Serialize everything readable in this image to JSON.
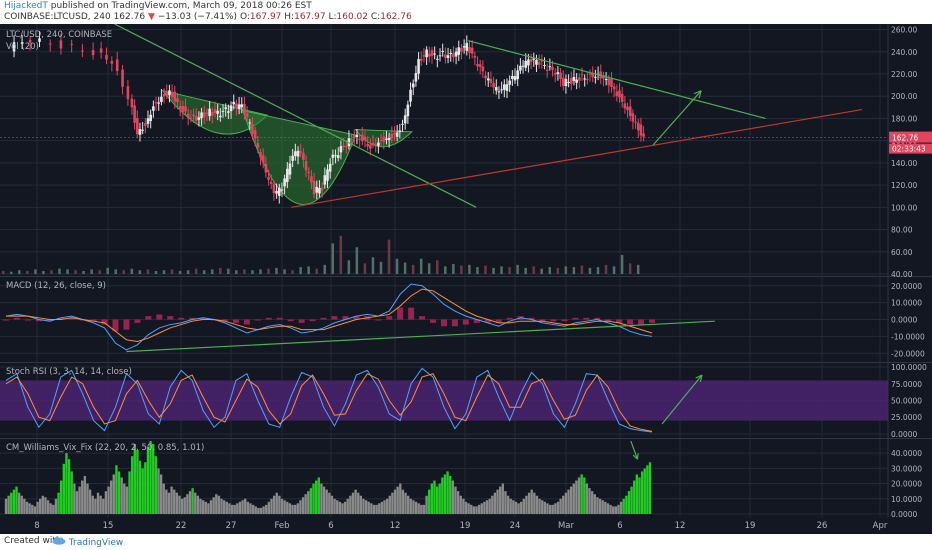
{
  "header": {
    "author": "HijackedT",
    "published": "published on TradingView.com, March 09, 2018 00:26 EST",
    "symbol": "COINBASE:LTCUSD, 240",
    "last": "162.76",
    "arrow": "▼",
    "change": "−13.03 (−7.41%)",
    "o_label": "O:",
    "o_val": "167.97",
    "h_label": "H:",
    "h_val": "167.97",
    "l_label": "L:",
    "l_val": "160.02",
    "c_label": "C:",
    "c_val": "162.76"
  },
  "footer": {
    "created": "Created with",
    "brand": "TradingView"
  },
  "colors": {
    "bg": "#131722",
    "grid": "#242a38",
    "axis_text": "#b2b5be",
    "up": "#e8e8e8",
    "down": "#e0465e",
    "trend_green": "#4caf50",
    "trend_red": "#c0392b",
    "pattern_fill": "#2e7d32",
    "price_tag": "#e0465e",
    "stoch_band": "#4a2370",
    "vix_green": "#22cc22",
    "vix_gray": "#8a8a8a",
    "macd_line": "#4da3ff",
    "signal_line": "#ff8c42",
    "hist": "#b0245b"
  },
  "chart_data": [
    {
      "type": "candlestick",
      "title": "LTC/USD, 240, COINBASE",
      "indicator": "Vol (20)",
      "x_ticks": [
        "8",
        "15",
        "22",
        "27",
        "Feb",
        "6",
        "12",
        "19",
        "24",
        "Mar",
        "6",
        "12",
        "19",
        "26",
        "Apr"
      ],
      "y_ticks": [
        "260.00",
        "240.00",
        "220.00",
        "200.00",
        "180.00",
        "160.00",
        "140.00",
        "120.00",
        "100.00",
        "80.00",
        "60.00",
        "40.00"
      ],
      "ylim": [
        40,
        265
      ],
      "price_label": "162.76",
      "countdown_label": "02:33:43",
      "last_price": 162.76,
      "price_path": [
        [
          1,
          243
        ],
        [
          4,
          251
        ],
        [
          8,
          246
        ],
        [
          12,
          240
        ],
        [
          14,
          232
        ],
        [
          16,
          200
        ],
        [
          17,
          168
        ],
        [
          18,
          175
        ],
        [
          19,
          192
        ],
        [
          20,
          200
        ],
        [
          21,
          205
        ],
        [
          22,
          194
        ],
        [
          23,
          185
        ],
        [
          24,
          180
        ],
        [
          25,
          183
        ],
        [
          26,
          186
        ],
        [
          27,
          184
        ],
        [
          28,
          187
        ],
        [
          29,
          192
        ],
        [
          30,
          190
        ],
        [
          31,
          174
        ],
        [
          32,
          152
        ],
        [
          33,
          130
        ],
        [
          34,
          112
        ],
        [
          35,
          116
        ],
        [
          36,
          140
        ],
        [
          37,
          152
        ],
        [
          38,
          135
        ],
        [
          39,
          114
        ],
        [
          40,
          118
        ],
        [
          41,
          142
        ],
        [
          42,
          150
        ],
        [
          43,
          158
        ],
        [
          44,
          165
        ],
        [
          45,
          162
        ],
        [
          46,
          155
        ],
        [
          47,
          160
        ],
        [
          48,
          163
        ],
        [
          49,
          166
        ],
        [
          50,
          175
        ],
        [
          51,
          205
        ],
        [
          52,
          232
        ],
        [
          53,
          240
        ],
        [
          54,
          236
        ],
        [
          55,
          238
        ],
        [
          56,
          236
        ],
        [
          57,
          241
        ],
        [
          58,
          245
        ],
        [
          59,
          232
        ],
        [
          60,
          220
        ],
        [
          61,
          210
        ],
        [
          62,
          203
        ],
        [
          63,
          210
        ],
        [
          64,
          218
        ],
        [
          65,
          228
        ],
        [
          66,
          232
        ],
        [
          67,
          230
        ],
        [
          68,
          225
        ],
        [
          69,
          222
        ],
        [
          70,
          212
        ],
        [
          71,
          214
        ],
        [
          72,
          217
        ],
        [
          73,
          218
        ],
        [
          74,
          220
        ],
        [
          75,
          218
        ],
        [
          76,
          210
        ],
        [
          77,
          200
        ],
        [
          78,
          188
        ],
        [
          79,
          176
        ],
        [
          80,
          162.76
        ]
      ],
      "volume": [
        4,
        3,
        5,
        4,
        6,
        4,
        5,
        7,
        6,
        5,
        4,
        6,
        5,
        8,
        6,
        5,
        7,
        5,
        6,
        4,
        5,
        6,
        4,
        5,
        7,
        5,
        6,
        8,
        7,
        5,
        6,
        5,
        6,
        7,
        8,
        6,
        5,
        9,
        10,
        7,
        12,
        40,
        50,
        18,
        35,
        14,
        22,
        16,
        45,
        20,
        15,
        12,
        20,
        14,
        18,
        10,
        13,
        11,
        12,
        9,
        11,
        8,
        10,
        9,
        12,
        8,
        10,
        7,
        9,
        8,
        10,
        9,
        11,
        8,
        9,
        12,
        10,
        25,
        14,
        12
      ],
      "annotations": [
        {
          "type": "trendline",
          "color": "green",
          "from": [
            14,
            265
          ],
          "to": [
            59,
            100
          ]
        },
        {
          "type": "trendline",
          "color": "green",
          "from": [
            58,
            250
          ],
          "to": [
            95,
            180
          ]
        },
        {
          "type": "trendline",
          "color": "red",
          "from": [
            36,
            100
          ],
          "to": [
            107,
            188
          ]
        },
        {
          "type": "arrow",
          "color": "green",
          "from": [
            81,
            156
          ],
          "to": [
            87,
            205
          ]
        }
      ]
    },
    {
      "type": "line",
      "title": "MACD (12, 26, close, 9)",
      "y_ticks": [
        "20.0000",
        "10.0000",
        "0.0000",
        "-10.0000",
        "-20.0000"
      ],
      "ylim": [
        -24,
        24
      ],
      "macd": [
        2,
        3,
        2,
        0,
        -1,
        1,
        2,
        0,
        -2,
        -5,
        -14,
        -18,
        -15,
        -9,
        -5,
        -3,
        -2,
        0,
        1,
        0,
        -2,
        -5,
        -8,
        -6,
        -4,
        -3,
        -5,
        -8,
        -7,
        -5,
        -2,
        0,
        2,
        3,
        2,
        5,
        15,
        21,
        20,
        15,
        9,
        5,
        2,
        0,
        -2,
        -4,
        -1,
        1,
        0,
        -2,
        -3,
        -4,
        -2,
        -1,
        0,
        -2,
        -4,
        -7,
        -9,
        -10
      ],
      "signal": [
        2,
        2,
        2,
        1,
        0,
        0,
        1,
        0,
        -1,
        -2,
        -7,
        -12,
        -13,
        -11,
        -8,
        -5,
        -3,
        -1,
        0,
        0,
        -1,
        -3,
        -5,
        -6,
        -5,
        -4,
        -4,
        -6,
        -6,
        -6,
        -4,
        -2,
        0,
        1,
        2,
        3,
        8,
        14,
        18,
        17,
        13,
        9,
        5,
        2,
        0,
        -2,
        -2,
        -1,
        -1,
        -1,
        -2,
        -3,
        -3,
        -2,
        -1,
        -1,
        -2,
        -4,
        -6,
        -8
      ],
      "annotations": [
        {
          "type": "trendline",
          "color": "green",
          "from": [
            11,
            -19
          ],
          "to": [
            62,
            -1
          ]
        }
      ]
    },
    {
      "type": "line",
      "title": "Stoch RSI (3, 3, 14, 14, close)",
      "y_ticks": [
        "100.0000",
        "75.0000",
        "50.0000",
        "25.0000",
        "0.0000"
      ],
      "ylim": [
        -3,
        103
      ],
      "band": [
        20,
        80
      ],
      "k": [
        80,
        90,
        40,
        10,
        30,
        85,
        95,
        60,
        20,
        5,
        40,
        90,
        75,
        30,
        15,
        70,
        95,
        80,
        35,
        10,
        25,
        80,
        90,
        50,
        15,
        10,
        55,
        92,
        85,
        40,
        12,
        45,
        88,
        95,
        70,
        30,
        20,
        75,
        98,
        85,
        40,
        8,
        30,
        85,
        95,
        55,
        20,
        60,
        92,
        75,
        30,
        10,
        45,
        90,
        88,
        50,
        15,
        8,
        5,
        3
      ],
      "d": [
        75,
        85,
        60,
        25,
        20,
        55,
        85,
        75,
        40,
        15,
        20,
        60,
        80,
        50,
        25,
        45,
        80,
        88,
        55,
        25,
        18,
        50,
        82,
        70,
        35,
        15,
        30,
        72,
        88,
        60,
        28,
        30,
        65,
        90,
        82,
        50,
        28,
        48,
        85,
        90,
        60,
        25,
        20,
        55,
        88,
        75,
        40,
        40,
        75,
        82,
        50,
        22,
        28,
        65,
        88,
        70,
        35,
        12,
        7,
        4
      ],
      "annotations": [
        {
          "type": "arrow",
          "color": "green",
          "from": [
            82,
            15
          ],
          "to": [
            87,
            88
          ]
        }
      ]
    },
    {
      "type": "bar",
      "title": "CM_Williams_Vix_Fix (22, 20, 2, 50, 0.85, 1.01)",
      "y_ticks": [
        "40.0000",
        "30.0000",
        "20.0000",
        "10.0000",
        "0.0000"
      ],
      "ylim": [
        -2,
        48
      ],
      "values": [
        10,
        12,
        14,
        16,
        18,
        14,
        12,
        10,
        8,
        7,
        6,
        5,
        8,
        10,
        12,
        11,
        9,
        7,
        6,
        10,
        14,
        22,
        33,
        40,
        36,
        28,
        20,
        15,
        18,
        22,
        25,
        20,
        16,
        12,
        10,
        14,
        12,
        10,
        15,
        18,
        22,
        26,
        32,
        28,
        24,
        20,
        18,
        28,
        38,
        46,
        42,
        35,
        30,
        34,
        44,
        48,
        46,
        38,
        30,
        26,
        20,
        16,
        14,
        18,
        16,
        14,
        12,
        10,
        11,
        13,
        15,
        17,
        14,
        12,
        10,
        9,
        8,
        7,
        9,
        11,
        13,
        12,
        10,
        9,
        8,
        7,
        6,
        6,
        7,
        8,
        9,
        10,
        8,
        7,
        6,
        5,
        4,
        4,
        5,
        6,
        8,
        10,
        12,
        14,
        12,
        10,
        9,
        8,
        7,
        6,
        6,
        7,
        9,
        11,
        13,
        15,
        17,
        20,
        22,
        24,
        20,
        18,
        16,
        14,
        12,
        10,
        9,
        8,
        7,
        8,
        10,
        12,
        14,
        16,
        14,
        12,
        10,
        9,
        8,
        7,
        6,
        6,
        7,
        8,
        9,
        10,
        12,
        14,
        16,
        18,
        20,
        16,
        14,
        12,
        10,
        9,
        8,
        7,
        6,
        6,
        12,
        16,
        20,
        22,
        18,
        20,
        24,
        26,
        28,
        25,
        22,
        18,
        15,
        12,
        10,
        8,
        7,
        6,
        5,
        5,
        6,
        7,
        8,
        9,
        10,
        12,
        14,
        16,
        18,
        20,
        15,
        12,
        10,
        9,
        8,
        7,
        8,
        10,
        12,
        14,
        16,
        14,
        12,
        10,
        9,
        8,
        7,
        6,
        6,
        7,
        8,
        10,
        12,
        14,
        16,
        18,
        20,
        22,
        24,
        26,
        24,
        20,
        17,
        15,
        13,
        11,
        10,
        9,
        8,
        7,
        6,
        5,
        5,
        6,
        8,
        10,
        12,
        15,
        18,
        22,
        26,
        24,
        28,
        30,
        32,
        34
      ],
      "highlight": [
        0,
        0,
        1,
        1,
        1,
        0,
        0,
        0,
        0,
        0,
        0,
        0,
        0,
        0,
        0,
        0,
        0,
        0,
        0,
        0,
        1,
        1,
        1,
        1,
        1,
        1,
        0,
        0,
        0,
        0,
        0,
        0,
        0,
        0,
        0,
        0,
        0,
        0,
        0,
        0,
        0,
        0,
        1,
        1,
        0,
        0,
        0,
        1,
        1,
        1,
        1,
        1,
        1,
        1,
        1,
        1,
        1,
        1,
        0,
        0,
        0,
        0,
        0,
        0,
        0,
        0,
        0,
        0,
        0,
        0,
        0,
        1,
        0,
        0,
        0,
        0,
        0,
        0,
        0,
        0,
        0,
        0,
        0,
        0,
        0,
        0,
        0,
        0,
        0,
        0,
        0,
        0,
        0,
        0,
        0,
        0,
        0,
        0,
        0,
        0,
        0,
        0,
        0,
        0,
        0,
        0,
        0,
        0,
        0,
        0,
        0,
        0,
        0,
        0,
        0,
        0,
        1,
        1,
        1,
        1,
        0,
        0,
        0,
        0,
        0,
        0,
        0,
        0,
        0,
        0,
        0,
        0,
        0,
        0,
        0,
        0,
        0,
        0,
        0,
        0,
        0,
        0,
        0,
        0,
        0,
        0,
        0,
        0,
        0,
        0,
        0,
        0,
        0,
        0,
        0,
        0,
        0,
        0,
        0,
        0,
        0,
        1,
        1,
        1,
        1,
        1,
        1,
        1,
        1,
        1,
        0,
        0,
        0,
        0,
        0,
        0,
        0,
        0,
        0,
        0,
        0,
        0,
        0,
        0,
        0,
        0,
        0,
        0,
        0,
        0,
        0,
        0,
        0,
        0,
        0,
        0,
        0,
        0,
        0,
        0,
        0,
        0,
        0,
        0,
        0,
        0,
        0,
        0,
        0,
        0,
        0,
        0,
        0,
        0,
        0,
        0,
        0,
        0,
        0,
        1,
        1,
        0,
        0,
        0,
        0,
        0,
        0,
        0,
        0,
        0,
        0,
        0,
        0,
        0,
        0,
        1,
        1,
        1,
        1,
        1,
        1,
        1,
        1,
        1,
        1,
        1
      ],
      "annotations": [
        {
          "type": "arrow",
          "color": "green",
          "from": [
            240,
            44
          ],
          "to": [
            241,
            36
          ]
        }
      ]
    }
  ]
}
